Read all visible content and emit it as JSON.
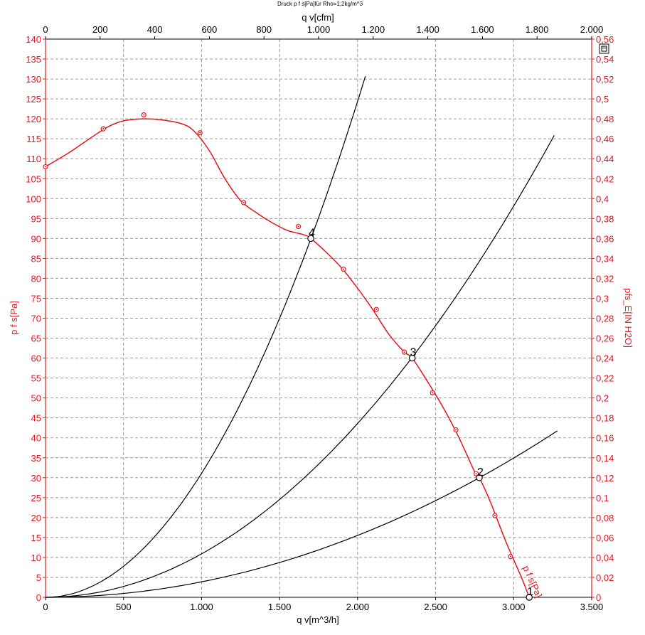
{
  "chart_data": {
    "type": "line",
    "title": "Druck p f s[Pa]für Rho=1,2kg/m^3",
    "xlabel": "q v[m^3/h]",
    "xlabel_top": "q v[cfm]",
    "ylabel": "p f s[Pa]",
    "ylabel_right": "pfs_E[IN H2O]",
    "xlim": [
      0,
      3500
    ],
    "ylim": [
      0,
      140
    ],
    "xlim_top": [
      0,
      2000
    ],
    "ylim_right": [
      0,
      0.56
    ],
    "grid": true,
    "x_ticks": [
      {
        "value": 0,
        "label": "0"
      },
      {
        "value": 500,
        "label": "500"
      },
      {
        "value": 1000,
        "label": "1.000"
      },
      {
        "value": 1500,
        "label": "1.500"
      },
      {
        "value": 2000,
        "label": "2.000"
      },
      {
        "value": 2500,
        "label": "2.500"
      },
      {
        "value": 3000,
        "label": "3.000"
      },
      {
        "value": 3500,
        "label": "3.500"
      }
    ],
    "x_top_ticks": [
      {
        "value": 0,
        "label": "0"
      },
      {
        "value": 200,
        "label": "200"
      },
      {
        "value": 400,
        "label": "400"
      },
      {
        "value": 600,
        "label": "600"
      },
      {
        "value": 800,
        "label": "800"
      },
      {
        "value": 1000,
        "label": "1.000"
      },
      {
        "value": 1200,
        "label": "1.200"
      },
      {
        "value": 1400,
        "label": "1.400"
      },
      {
        "value": 1600,
        "label": "1.600"
      },
      {
        "value": 1800,
        "label": "1.800"
      },
      {
        "value": 2000,
        "label": "2.000"
      }
    ],
    "y_ticks": [
      0,
      5,
      10,
      15,
      20,
      25,
      30,
      35,
      40,
      45,
      50,
      55,
      60,
      65,
      70,
      75,
      80,
      85,
      90,
      95,
      100,
      105,
      110,
      115,
      120,
      125,
      130,
      135,
      140
    ],
    "y_right_ticks": [
      {
        "value": 0,
        "label": "0"
      },
      {
        "value": 0.02,
        "label": "0,02"
      },
      {
        "value": 0.04,
        "label": "0,04"
      },
      {
        "value": 0.06,
        "label": "0,06"
      },
      {
        "value": 0.08,
        "label": "0,08"
      },
      {
        "value": 0.1,
        "label": "0,1"
      },
      {
        "value": 0.12,
        "label": "0,12"
      },
      {
        "value": 0.14,
        "label": "0,14"
      },
      {
        "value": 0.16,
        "label": "0,16"
      },
      {
        "value": 0.18,
        "label": "0,18"
      },
      {
        "value": 0.2,
        "label": "0,2"
      },
      {
        "value": 0.22,
        "label": "0,22"
      },
      {
        "value": 0.24,
        "label": "0,24"
      },
      {
        "value": 0.26,
        "label": "0,26"
      },
      {
        "value": 0.28,
        "label": "0,28"
      },
      {
        "value": 0.3,
        "label": "0,3"
      },
      {
        "value": 0.32,
        "label": "0,32"
      },
      {
        "value": 0.34,
        "label": "0,34"
      },
      {
        "value": 0.36,
        "label": "0,36"
      },
      {
        "value": 0.38,
        "label": "0,38"
      },
      {
        "value": 0.4,
        "label": "0,4"
      },
      {
        "value": 0.42,
        "label": "0,42"
      },
      {
        "value": 0.44,
        "label": "0,44"
      },
      {
        "value": 0.46,
        "label": "0,46"
      },
      {
        "value": 0.48,
        "label": "0,48"
      },
      {
        "value": 0.5,
        "label": "0,5"
      },
      {
        "value": 0.52,
        "label": "0,52"
      },
      {
        "value": 0.54,
        "label": "0,54"
      },
      {
        "value": 0.56,
        "label": "0,56"
      }
    ],
    "fan_curve": {
      "label": "p f s[Pa]",
      "color": "#e8141c",
      "curve": [
        [
          0,
          108
        ],
        [
          150,
          111.5
        ],
        [
          300,
          115.5
        ],
        [
          400,
          118
        ],
        [
          500,
          119.5
        ],
        [
          630,
          120
        ],
        [
          750,
          119.7
        ],
        [
          870,
          118.8
        ],
        [
          950,
          117
        ],
        [
          1050,
          112
        ],
        [
          1150,
          105
        ],
        [
          1250,
          99.5
        ],
        [
          1350,
          96.5
        ],
        [
          1450,
          94
        ],
        [
          1550,
          92
        ],
        [
          1650,
          91
        ],
        [
          1700,
          90
        ],
        [
          1800,
          86.5
        ],
        [
          1900,
          82.5
        ],
        [
          2000,
          77.5
        ],
        [
          2100,
          72
        ],
        [
          2200,
          66
        ],
        [
          2300,
          61.5
        ],
        [
          2350,
          60
        ],
        [
          2450,
          54
        ],
        [
          2550,
          47.5
        ],
        [
          2650,
          40
        ],
        [
          2750,
          31.5
        ],
        [
          2780,
          30
        ],
        [
          2850,
          24
        ],
        [
          2950,
          14
        ],
        [
          3050,
          5
        ],
        [
          3100,
          0
        ]
      ],
      "markers": [
        [
          0,
          108
        ],
        [
          370,
          117.5
        ],
        [
          630,
          121
        ],
        [
          990,
          116.5
        ],
        [
          1270,
          99
        ],
        [
          1620,
          93
        ],
        [
          1910,
          82.3
        ],
        [
          2120,
          72.2
        ],
        [
          2300,
          61.5
        ],
        [
          2480,
          51.3
        ],
        [
          2630,
          42
        ],
        [
          2760,
          31
        ],
        [
          2880,
          20.5
        ],
        [
          2980,
          10.2
        ]
      ]
    },
    "system_curves": [
      {
        "id": "4",
        "k": 3.11e-05,
        "x_max": 2050
      },
      {
        "id": "3",
        "k": 1.09e-05,
        "x_max": 3260
      },
      {
        "id": "2",
        "k": 3.88e-06,
        "x_max": 3280
      }
    ],
    "operating_points": [
      {
        "label": "4",
        "x": 1700,
        "y": 90
      },
      {
        "label": "3",
        "x": 2350,
        "y": 60
      },
      {
        "label": "2",
        "x": 2780,
        "y": 30
      },
      {
        "label": "1",
        "x": 3100,
        "y": 0
      }
    ],
    "curve_label": "p f s[Pa]"
  },
  "toolbar": {
    "icon": "window-icon"
  }
}
